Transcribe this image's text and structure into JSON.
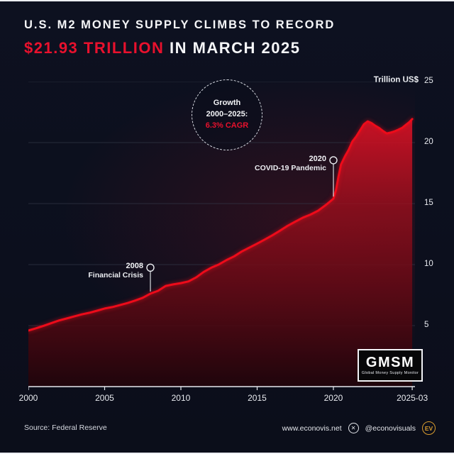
{
  "colors": {
    "accent_red": "#e8112d",
    "line_red": "#ed0b1a",
    "background": "#0c0f1d",
    "grid": "#343a4a",
    "axis": "#e6e8ee"
  },
  "header": {
    "title_line1": "U.S. M2 MONEY SUPPLY CLIMBS TO RECORD",
    "title_line2_highlight": "$21.93 TRILLION",
    "title_line2_rest": " IN MARCH 2025"
  },
  "badge": {
    "line1": "Growth",
    "line2": "2000–2025:",
    "line3": "6.3% CAGR"
  },
  "chart_data": {
    "type": "area",
    "title": "U.S. M2 Money Supply climbs to record $21.93 trillion in March 2025",
    "ylabel": "Trillion US$",
    "xlim": [
      2000,
      2025.35
    ],
    "ylim": [
      0,
      25
    ],
    "y_ticks": [
      5,
      10,
      15,
      20,
      25
    ],
    "x_ticks": [
      {
        "label": "2000",
        "x": 2000
      },
      {
        "label": "2005",
        "x": 2005
      },
      {
        "label": "2010",
        "x": 2010
      },
      {
        "label": "2015",
        "x": 2015
      },
      {
        "label": "2020",
        "x": 2020
      },
      {
        "label": "2025-03",
        "x": 2025.17
      }
    ],
    "x": [
      2000.0,
      2000.5,
      2001.0,
      2001.5,
      2002.0,
      2002.5,
      2003.0,
      2003.5,
      2004.0,
      2004.5,
      2005.0,
      2005.5,
      2006.0,
      2006.5,
      2007.0,
      2007.5,
      2008.0,
      2008.5,
      2009.0,
      2009.5,
      2010.0,
      2010.5,
      2011.0,
      2011.5,
      2012.0,
      2012.5,
      2013.0,
      2013.5,
      2014.0,
      2014.5,
      2015.0,
      2015.5,
      2016.0,
      2016.5,
      2017.0,
      2017.5,
      2018.0,
      2018.5,
      2019.0,
      2019.5,
      2020.0,
      2020.17,
      2020.33,
      2020.5,
      2020.75,
      2021.0,
      2021.25,
      2021.5,
      2021.75,
      2022.0,
      2022.25,
      2022.5,
      2022.75,
      2023.0,
      2023.25,
      2023.5,
      2023.75,
      2024.0,
      2024.25,
      2024.5,
      2024.75,
      2025.0,
      2025.17
    ],
    "values": [
      4.6,
      4.78,
      4.98,
      5.2,
      5.42,
      5.58,
      5.75,
      5.92,
      6.05,
      6.22,
      6.4,
      6.52,
      6.68,
      6.85,
      7.05,
      7.28,
      7.62,
      7.85,
      8.25,
      8.38,
      8.48,
      8.62,
      8.95,
      9.4,
      9.75,
      10.02,
      10.38,
      10.68,
      11.08,
      11.4,
      11.72,
      12.05,
      12.4,
      12.78,
      13.18,
      13.52,
      13.85,
      14.1,
      14.42,
      14.88,
      15.4,
      16.1,
      17.2,
      18.2,
      18.85,
      19.4,
      20.1,
      20.5,
      21.0,
      21.5,
      21.74,
      21.6,
      21.38,
      21.2,
      20.95,
      20.75,
      20.82,
      20.92,
      21.05,
      21.2,
      21.45,
      21.7,
      21.93
    ],
    "final_value_label": "$21.93 trillion (March 2025)",
    "annotations": [
      {
        "id": "financial-crisis",
        "year": 2008,
        "value": 7.62,
        "marker_value": 9.75,
        "title": "2008",
        "label": "Financial Crisis"
      },
      {
        "id": "covid-pandemic",
        "year": 2020,
        "value": 15.4,
        "marker_value": 18.55,
        "title": "2020",
        "label": "COVID-19 Pandemic"
      }
    ]
  },
  "logo_box": {
    "title": "GMSM",
    "subtitle": "Global Money Supply Monitor"
  },
  "icons": {
    "x_social": "✕"
  },
  "footer": {
    "source": "Source: Federal Reserve",
    "website": "www.econovis.net",
    "handle": "@econovisuals",
    "ev_label": "EV"
  }
}
